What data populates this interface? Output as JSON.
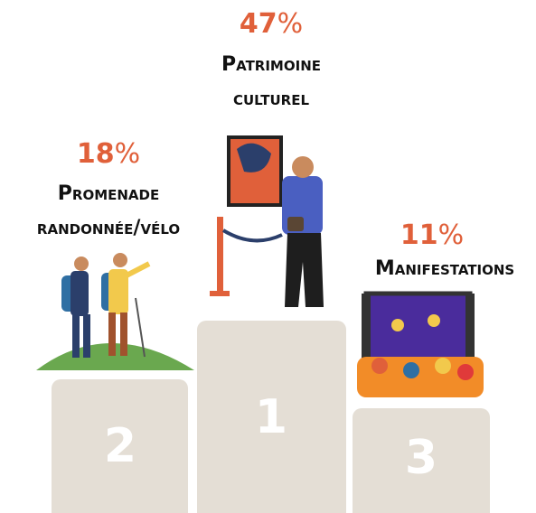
{
  "podium": [
    {
      "rank": "1",
      "value": "47",
      "unit": "%",
      "label_lines": [
        "Patrimoine",
        "culturel"
      ]
    },
    {
      "rank": "2",
      "value": "18",
      "unit": "%",
      "label_lines": [
        "Promenade",
        "randonnée/vélo"
      ]
    },
    {
      "rank": "3",
      "value": "11",
      "unit": "%",
      "label_lines": [
        "Manifestations"
      ]
    }
  ]
}
